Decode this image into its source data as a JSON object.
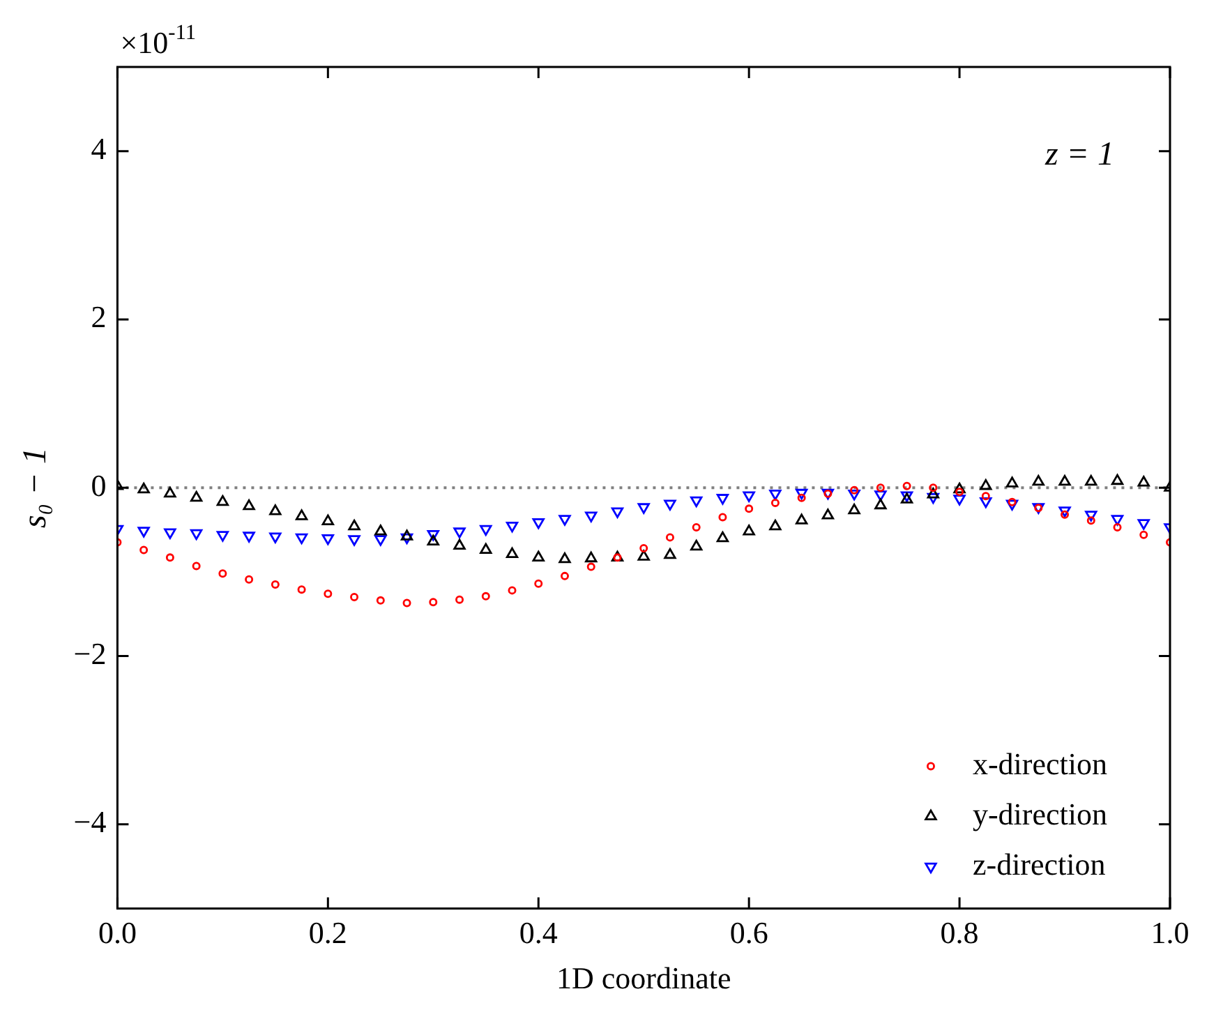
{
  "chart_data": {
    "type": "scatter",
    "xlabel": "1D coordinate",
    "ylabel": "s₀ − 1",
    "annotations": [
      "×10$^{-11}$",
      "z = 1"
    ],
    "x": [
      0,
      0.025,
      0.05,
      0.075,
      0.1,
      0.125,
      0.15,
      0.175,
      0.2,
      0.225,
      0.25,
      0.275,
      0.3,
      0.325,
      0.35,
      0.375,
      0.4,
      0.425,
      0.45,
      0.475,
      0.5,
      0.525,
      0.55,
      0.575,
      0.6,
      0.625,
      0.65,
      0.675,
      0.7,
      0.725,
      0.75,
      0.775,
      0.8,
      0.825,
      0.85,
      0.875,
      0.9,
      0.925,
      0.95,
      0.975,
      1
    ],
    "series": [
      {
        "name": "x-direction",
        "color": "#ff0000",
        "marker": "circle",
        "values": [
          -0.65,
          -0.74,
          -0.83,
          -0.93,
          -1.02,
          -1.09,
          -1.15,
          -1.21,
          -1.26,
          -1.3,
          -1.34,
          -1.37,
          -1.36,
          -1.33,
          -1.29,
          -1.22,
          -1.14,
          -1.05,
          -0.94,
          -0.83,
          -0.72,
          -0.59,
          -0.47,
          -0.35,
          -0.25,
          -0.18,
          -0.12,
          -0.07,
          -0.03,
          0,
          0.02,
          0,
          -0.05,
          -0.1,
          -0.17,
          -0.24,
          -0.32,
          -0.39,
          -0.47,
          -0.56,
          -0.65
        ]
      },
      {
        "name": "y-direction",
        "color": "#000000",
        "marker": "triangle",
        "values": [
          0.02,
          -0.02,
          -0.07,
          -0.12,
          -0.17,
          -0.22,
          -0.28,
          -0.34,
          -0.4,
          -0.46,
          -0.52,
          -0.58,
          -0.64,
          -0.69,
          -0.74,
          -0.79,
          -0.83,
          -0.85,
          -0.84,
          -0.83,
          -0.82,
          -0.8,
          -0.7,
          -0.6,
          -0.52,
          -0.46,
          -0.39,
          -0.33,
          -0.27,
          -0.21,
          -0.14,
          -0.08,
          -0.02,
          0.02,
          0.05,
          0.07,
          0.07,
          0.07,
          0.08,
          0.06,
          0
        ]
      },
      {
        "name": "z-direction",
        "color": "#0000ff",
        "marker": "triangle_down",
        "values": [
          -0.49,
          -0.51,
          -0.53,
          -0.54,
          -0.56,
          -0.57,
          -0.58,
          -0.59,
          -0.6,
          -0.61,
          -0.61,
          -0.59,
          -0.55,
          -0.52,
          -0.49,
          -0.45,
          -0.41,
          -0.37,
          -0.33,
          -0.28,
          -0.23,
          -0.19,
          -0.15,
          -0.12,
          -0.09,
          -0.07,
          -0.06,
          -0.06,
          -0.07,
          -0.08,
          -0.09,
          -0.11,
          -0.13,
          -0.16,
          -0.19,
          -0.23,
          -0.27,
          -0.32,
          -0.37,
          -0.42,
          -0.47
        ]
      }
    ],
    "xlim": [
      0,
      1
    ],
    "ylim": [
      -5,
      5
    ],
    "xticks": [
      {
        "value": 0,
        "label": "0.0"
      },
      {
        "value": 0.2,
        "label": "0.2"
      },
      {
        "value": 0.4,
        "label": "0.4"
      },
      {
        "value": 0.6,
        "label": "0.6"
      },
      {
        "value": 0.8,
        "label": "0.8"
      },
      {
        "value": 1,
        "label": "1.0"
      }
    ],
    "yticks": [
      {
        "value": -4,
        "label": "−4"
      },
      {
        "value": -2,
        "label": "−2"
      },
      0,
      2,
      4
    ],
    "ref_lines": [
      {
        "axis": "y",
        "value": 0,
        "color": "#808080",
        "line_style": "dotted"
      }
    ],
    "legend": "bottom right",
    "grid": false
  }
}
